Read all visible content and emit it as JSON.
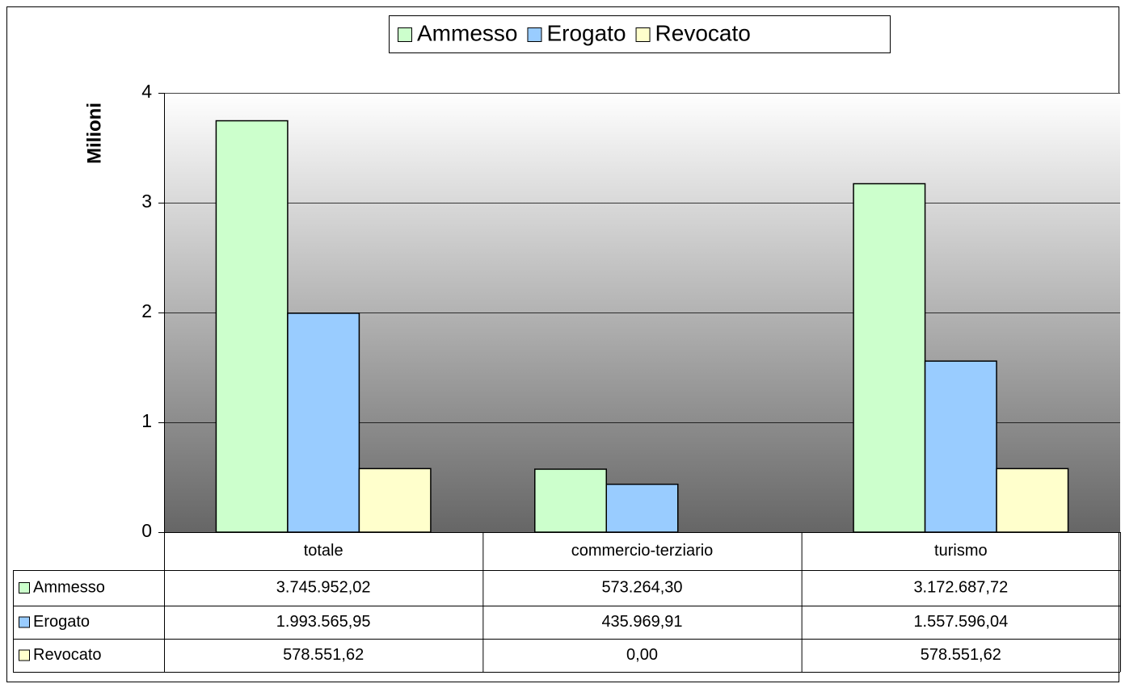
{
  "chart_data": {
    "type": "bar",
    "ylabel": "Milioni",
    "categories": [
      "totale",
      "commercio-terziario",
      "turismo"
    ],
    "series": [
      {
        "name": "Ammesso",
        "color": "#ccffcc",
        "values": [
          3.74595202,
          0.5732643,
          3.17268772
        ],
        "value_labels": [
          "3.745.952,02",
          "573.264,30",
          "3.172.687,72"
        ]
      },
      {
        "name": "Erogato",
        "color": "#99ccff",
        "values": [
          1.99356595,
          0.43596991,
          1.55759604
        ],
        "value_labels": [
          "1.993.565,95",
          "435.969,91",
          "1.557.596,04"
        ]
      },
      {
        "name": "Revocato",
        "color": "#ffffcc",
        "values": [
          0.57855162,
          0,
          0.57855162
        ],
        "value_labels": [
          "578.551,62",
          "0,00",
          "578.551,62"
        ]
      }
    ],
    "ylim": [
      0,
      4
    ],
    "yticks": [
      0,
      1,
      2,
      3,
      4
    ],
    "grid": true,
    "legend": "top"
  }
}
